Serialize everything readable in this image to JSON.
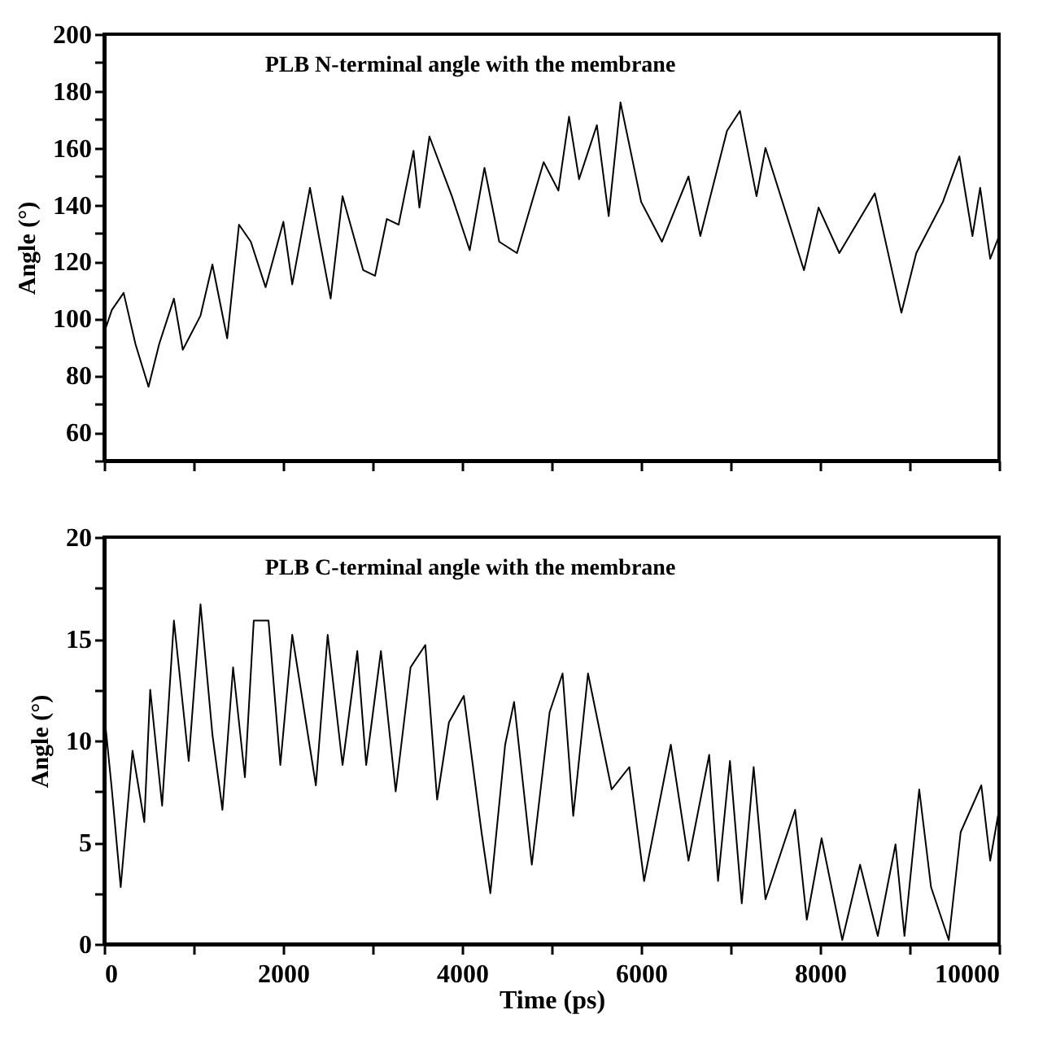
{
  "chart_data": [
    {
      "type": "line",
      "annotations": [
        "PLB N-terminal angle with the membrane"
      ],
      "ylabel": "Angle (°)",
      "tick_labels": "y",
      "grid": false,
      "x": [
        0,
        86,
        218,
        350,
        496,
        615,
        780,
        879,
        1077,
        1210,
        1375,
        1507,
        1639,
        1804,
        2003,
        2102,
        2300,
        2399,
        2531,
        2664,
        2895,
        3027,
        3159,
        3291,
        3457,
        3523,
        3635,
        3886,
        4085,
        4250,
        4415,
        4613,
        4911,
        5076,
        5195,
        5307,
        5506,
        5638,
        5770,
        6001,
        6233,
        6530,
        6662,
        6960,
        7105,
        7290,
        7390,
        7820,
        7984,
        8215,
        8612,
        8909,
        9075,
        9372,
        9557,
        9703,
        9789,
        9901,
        10000
      ],
      "series": [
        {
          "color": "#000000",
          "values": [
            95,
            103,
            109,
            91,
            76,
            91,
            107,
            89,
            101,
            119,
            93,
            133,
            127,
            111,
            134,
            112,
            146,
            129,
            107,
            143,
            117,
            115,
            135,
            133,
            159,
            139,
            164,
            143,
            124,
            153,
            127,
            123,
            155,
            145,
            171,
            149,
            168,
            136,
            176,
            141,
            127,
            150,
            129,
            166,
            173,
            143,
            160,
            117,
            139,
            123,
            144,
            102,
            123,
            141,
            157,
            129,
            146,
            121,
            129
          ]
        }
      ],
      "xlim": [
        0,
        10000
      ],
      "xticks": [
        0,
        {
          "value": 1000,
          "label": null
        },
        2000,
        {
          "value": 3000,
          "label": null
        },
        4000,
        {
          "value": 5000,
          "label": null
        },
        6000,
        {
          "value": 7000,
          "label": null
        },
        8000,
        {
          "value": 9000,
          "label": null
        },
        10000
      ],
      "ylim": [
        50,
        200
      ],
      "yticks": [
        {
          "value": 50,
          "label": null
        },
        60,
        {
          "value": 70,
          "label": null
        },
        80,
        {
          "value": 90,
          "label": null
        },
        100,
        {
          "value": 110,
          "label": null
        },
        120,
        {
          "value": 130,
          "label": null
        },
        140,
        {
          "value": 150,
          "label": null
        },
        160,
        {
          "value": 170,
          "label": null
        },
        180,
        {
          "value": 190,
          "label": null
        },
        200
      ]
    },
    {
      "type": "line",
      "annotations": [
        "PLB C-terminal angle with the membrane"
      ],
      "xlabel": "Time (ps)",
      "ylabel": "Angle (°)",
      "grid": false,
      "x": [
        0,
        86,
        185,
        317,
        449,
        515,
        648,
        780,
        945,
        1077,
        1210,
        1322,
        1441,
        1573,
        1672,
        1837,
        1969,
        2102,
        2366,
        2498,
        2664,
        2829,
        2928,
        3093,
        3258,
        3424,
        3589,
        3721,
        3853,
        4019,
        4217,
        4316,
        4481,
        4581,
        4779,
        4978,
        5123,
        5242,
        5407,
        5671,
        5869,
        6034,
        6332,
        6530,
        6761,
        6860,
        6993,
        7125,
        7258,
        7390,
        7721,
        7852,
        8017,
        8248,
        8447,
        8645,
        8843,
        8943,
        9108,
        9240,
        9438,
        9571,
        9802,
        9901,
        10000
      ],
      "series": [
        {
          "color": "#000000",
          "values": [
            11.4,
            7.6,
            2.8,
            9.5,
            6.0,
            12.5,
            6.8,
            15.9,
            9.0,
            16.7,
            10.3,
            6.6,
            13.6,
            8.2,
            15.9,
            15.9,
            8.8,
            15.2,
            7.8,
            15.2,
            8.8,
            14.4,
            8.8,
            14.4,
            7.5,
            13.6,
            14.7,
            7.1,
            10.9,
            12.2,
            5.5,
            2.5,
            9.8,
            11.9,
            3.9,
            11.4,
            13.3,
            6.3,
            13.3,
            7.6,
            8.7,
            3.1,
            9.8,
            4.1,
            9.3,
            3.1,
            9.0,
            2.0,
            8.7,
            2.2,
            6.6,
            1.2,
            5.2,
            0.2,
            3.9,
            0.4,
            4.9,
            0.4,
            7.6,
            2.8,
            0.2,
            5.5,
            7.8,
            4.1,
            6.6
          ]
        }
      ],
      "xlim": [
        0,
        10000
      ],
      "xticks": [
        0,
        {
          "value": 1000,
          "label": null
        },
        2000,
        {
          "value": 3000,
          "label": null
        },
        4000,
        {
          "value": 5000,
          "label": null
        },
        6000,
        {
          "value": 7000,
          "label": null
        },
        8000,
        {
          "value": 9000,
          "label": null
        },
        10000
      ],
      "ylim": [
        0,
        20
      ],
      "yticks": [
        0,
        {
          "value": 2.5,
          "label": null
        },
        5,
        {
          "value": 7.5,
          "label": null
        },
        10,
        {
          "value": 12.5,
          "label": null
        },
        15,
        {
          "value": 17.5,
          "label": null
        },
        20
      ]
    }
  ]
}
